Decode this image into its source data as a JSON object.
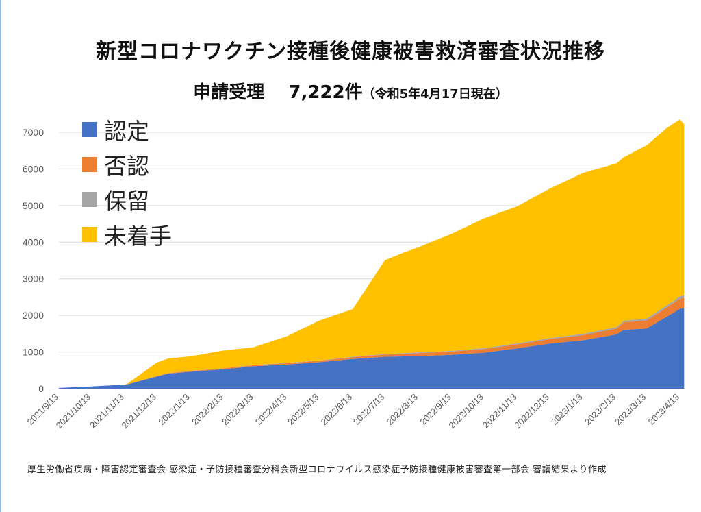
{
  "title": "新型コロナワクチン接種後健康被害救済審査状況推移",
  "subtitle": {
    "main": "申請受理　 7,222件",
    "note": "（令和5年4月17日現在）"
  },
  "footer": "厚生労働省疾病・障害認定審査会 感染症・予防接種審査分科会新型コロナウイルス感染症予防接種健康被害審査第一部会 審議結果より作成",
  "legend": [
    {
      "label": "認定",
      "color": "#4472c4"
    },
    {
      "label": "否認",
      "color": "#ed7d31"
    },
    {
      "label": "保留",
      "color": "#a5a5a5"
    },
    {
      "label": "未着手",
      "color": "#ffc000"
    }
  ],
  "chart_data": {
    "type": "area",
    "stacked": true,
    "title": "新型コロナワクチン接種後健康被害救済審査状況推移",
    "ylim": [
      0,
      7000
    ],
    "yticks": [
      0,
      1000,
      2000,
      3000,
      4000,
      5000,
      6000,
      7000
    ],
    "xticks": [
      "2021/9/13",
      "2021/10/13",
      "2021/11/13",
      "2021/12/13",
      "2022/1/13",
      "2022/2/13",
      "2022/3/13",
      "2022/4/13",
      "2022/5/13",
      "2022/6/13",
      "2022/7/13",
      "2022/8/13",
      "2022/9/13",
      "2022/10/13",
      "2022/11/13",
      "2022/12/13",
      "2023/1/13",
      "2023/2/13",
      "2023/3/13",
      "2023/4/13"
    ],
    "x": [
      "2021/9/13",
      "2021/10/13",
      "2021/11/13",
      "2021/11/16",
      "2021/12/13",
      "2021/12/24",
      "2022/1/13",
      "2022/2/13",
      "2022/3/13",
      "2022/4/13",
      "2022/5/13",
      "2022/6/13",
      "2022/7/13",
      "2022/7/30",
      "2022/8/13",
      "2022/9/13",
      "2022/10/13",
      "2022/11/13",
      "2022/12/13",
      "2023/1/13",
      "2023/2/13",
      "2023/2/20",
      "2023/3/13",
      "2023/3/31",
      "2023/4/13",
      "2023/4/17"
    ],
    "grid": true,
    "legend_position": "top-left",
    "series": [
      {
        "name": "認定",
        "color": "#4472c4",
        "values": [
          20,
          60,
          110,
          120,
          330,
          410,
          460,
          530,
          610,
          660,
          720,
          810,
          870,
          880,
          890,
          920,
          980,
          1100,
          1230,
          1320,
          1480,
          1610,
          1640,
          1950,
          2180,
          2200
        ]
      },
      {
        "name": "否認",
        "color": "#ed7d31",
        "values": [
          0,
          0,
          0,
          5,
          10,
          15,
          20,
          25,
          30,
          35,
          40,
          50,
          60,
          70,
          80,
          90,
          100,
          110,
          120,
          140,
          160,
          200,
          220,
          250,
          280,
          290
        ]
      },
      {
        "name": "保留",
        "color": "#a5a5a5",
        "values": [
          0,
          0,
          0,
          0,
          2,
          3,
          4,
          5,
          6,
          8,
          10,
          12,
          15,
          18,
          20,
          22,
          25,
          28,
          30,
          35,
          40,
          45,
          50,
          55,
          60,
          62
        ]
      },
      {
        "name": "未着手",
        "color": "#ffc000",
        "values": [
          0,
          0,
          0,
          15,
          370,
          400,
          396,
          480,
          484,
          727,
          1090,
          1298,
          2565,
          2742,
          2870,
          3198,
          3545,
          3742,
          4080,
          4395,
          4470,
          4465,
          4730,
          4845,
          4830,
          4670
        ]
      }
    ]
  }
}
